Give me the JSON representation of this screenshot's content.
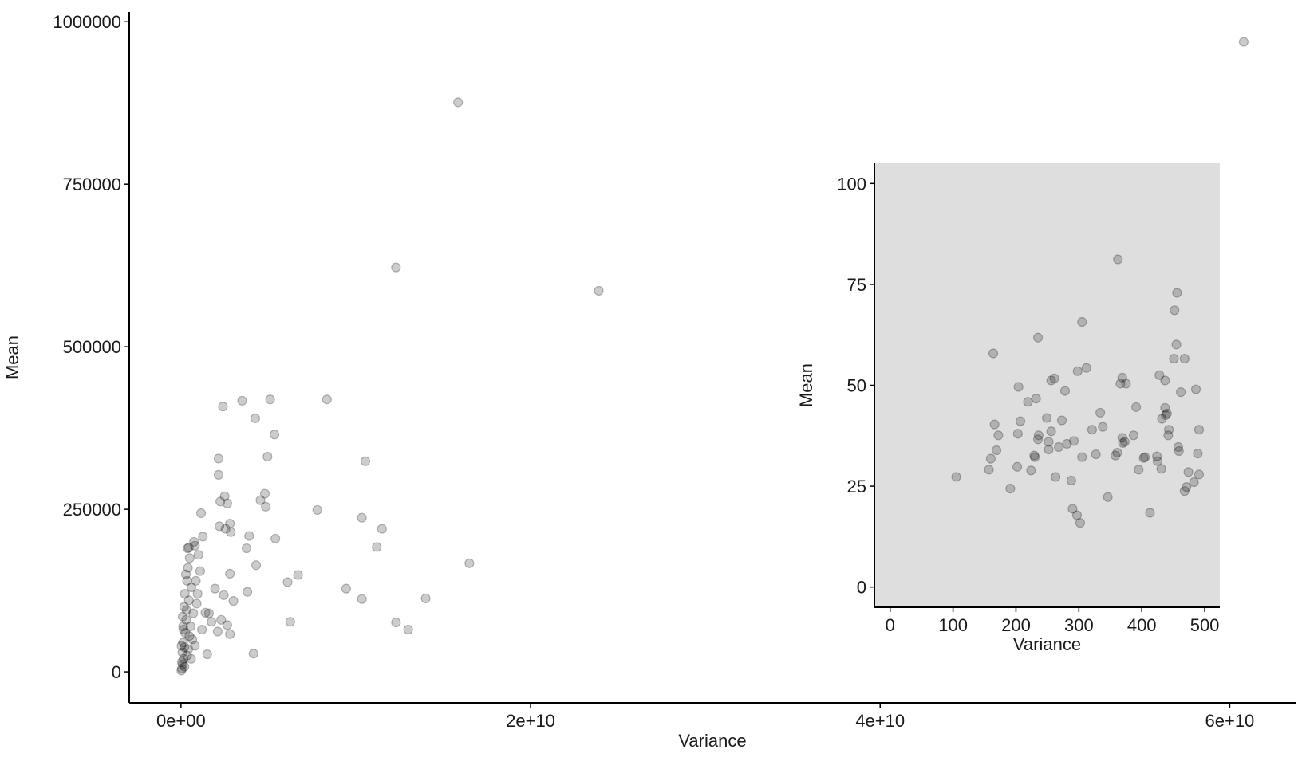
{
  "chart_data": [
    {
      "type": "scatter",
      "x_label": "Variance",
      "y_label": "Mean",
      "color": "#000000",
      "xlim": [
        -2960000000,
        63770000000
      ],
      "ylim": [
        -47700,
        1015000
      ],
      "xticks": [
        {
          "value": 0,
          "label": "0e+00"
        },
        {
          "value": 20000000000,
          "label": "2e+10"
        },
        {
          "value": 40000000000,
          "label": "4e+10"
        },
        {
          "value": 60000000000,
          "label": "6e+10"
        }
      ],
      "yticks": [
        0,
        250000,
        500000,
        750000,
        1000000
      ],
      "x": [
        60800000000,
        15850000000,
        12300000000,
        23900000000,
        16500000000,
        8350000000,
        5100000000,
        3500000000,
        2400000000,
        4250000000,
        5350000000,
        4950000000,
        10550000000,
        2150000000,
        2150000000,
        4800000000,
        2500000000,
        4550000000,
        2250000000,
        2650000000,
        4850000000,
        7800000000,
        10350000000,
        11500000000,
        1150000000,
        3900000000,
        5400000000,
        11200000000,
        3750000000,
        4300000000,
        6700000000,
        6100000000,
        9450000000,
        10350000000,
        14000000000,
        3800000000,
        3000000000,
        6250000000,
        12300000000,
        13000000000,
        4150000000,
        2800000000,
        2200000000,
        2800000000,
        2850000000,
        2550000000,
        1950000000,
        2450000000,
        2300000000,
        2650000000,
        2800000000,
        2100000000,
        1750000000,
        1600000000,
        1250000000,
        800000000,
        450000000,
        1400000000,
        1500000000,
        50000000,
        100000000,
        150000000,
        200000000,
        80000000,
        120000000,
        250000000,
        300000000,
        180000000,
        220000000,
        350000000,
        400000000,
        280000000,
        500000000,
        600000000,
        450000000,
        700000000,
        550000000,
        650000000,
        800000000,
        900000000,
        1000000000,
        1100000000,
        750000000,
        350000000,
        420000000,
        150000000,
        50000000,
        20000000,
        30000000,
        100000000,
        320000000,
        480000000,
        580000000,
        1200000000,
        950000000,
        850000000,
        380000000,
        120000000,
        200000000
      ],
      "values": [
        969000,
        876000,
        622000,
        586000,
        167000,
        419000,
        419000,
        417000,
        408000,
        390000,
        365000,
        331000,
        324000,
        328000,
        303000,
        274000,
        270000,
        264000,
        262000,
        259000,
        254000,
        249000,
        237000,
        220000,
        244000,
        209000,
        205000,
        192000,
        190000,
        164000,
        149000,
        138000,
        128000,
        112000,
        113000,
        123000,
        109000,
        77000,
        76000,
        65000,
        28000,
        151000,
        224000,
        228000,
        215000,
        220000,
        128000,
        118000,
        80000,
        72000,
        58000,
        62000,
        77000,
        90000,
        208000,
        194000,
        191000,
        91000,
        27000,
        5000,
        12000,
        20000,
        8000,
        30000,
        45000,
        60000,
        80000,
        100000,
        120000,
        140000,
        160000,
        150000,
        175000,
        130000,
        110000,
        90000,
        70000,
        50000,
        40000,
        105000,
        180000,
        155000,
        200000,
        25000,
        35000,
        65000,
        15000,
        2000,
        40000,
        85000,
        95000,
        55000,
        20000,
        65000,
        120000,
        140000,
        190000,
        70000,
        38000
      ]
    },
    {
      "type": "scatter",
      "x_label": "Variance",
      "y_label": "Mean",
      "color": "#000000",
      "background": "#dedede",
      "xlim": [
        -25,
        524
      ],
      "ylim": [
        -5,
        105
      ],
      "xticks": [
        0,
        100,
        200,
        300,
        400,
        500
      ],
      "yticks": [
        0,
        25,
        50,
        75,
        100
      ],
      "x": [
        105,
        157,
        160,
        164,
        166,
        169,
        172,
        191,
        202,
        203,
        204,
        207,
        224,
        219,
        229,
        230,
        232,
        235,
        235,
        236,
        249,
        252,
        252,
        256,
        256,
        261,
        263,
        268,
        273,
        278,
        281,
        288,
        290,
        292,
        297,
        298,
        302,
        305,
        305,
        312,
        321,
        327,
        334,
        338,
        346,
        358,
        361,
        362,
        366,
        369,
        369,
        370,
        373,
        375,
        387,
        391,
        395,
        403,
        405,
        413,
        424,
        425,
        428,
        431,
        432,
        437,
        437,
        438,
        440,
        442,
        443,
        451,
        452,
        455,
        456,
        458,
        459,
        462,
        468,
        468,
        471,
        474,
        483,
        486,
        491,
        489,
        491
      ],
      "values": [
        27.3,
        29.1,
        31.8,
        57.9,
        40.3,
        33.9,
        37.6,
        24.4,
        29.8,
        38.0,
        49.6,
        41.1,
        28.9,
        45.9,
        32.6,
        32.2,
        46.7,
        61.8,
        36.6,
        37.6,
        41.9,
        34.1,
        36.0,
        51.2,
        38.6,
        51.7,
        27.3,
        34.7,
        41.3,
        48.6,
        35.5,
        26.4,
        19.4,
        36.2,
        17.8,
        53.5,
        15.9,
        65.7,
        32.2,
        54.3,
        39.0,
        32.9,
        43.2,
        39.7,
        22.3,
        32.6,
        33.3,
        81.2,
        50.4,
        51.9,
        37.0,
        35.7,
        36.0,
        50.4,
        37.6,
        44.6,
        29.1,
        32.0,
        32.2,
        18.4,
        32.4,
        31.2,
        52.5,
        29.3,
        41.7,
        44.4,
        51.2,
        42.6,
        43.0,
        37.6,
        39.0,
        56.6,
        68.6,
        60.1,
        72.9,
        34.7,
        33.7,
        48.3,
        56.6,
        23.8,
        24.8,
        28.5,
        26.0,
        49.0,
        39.0,
        33.1,
        27.9
      ]
    }
  ]
}
